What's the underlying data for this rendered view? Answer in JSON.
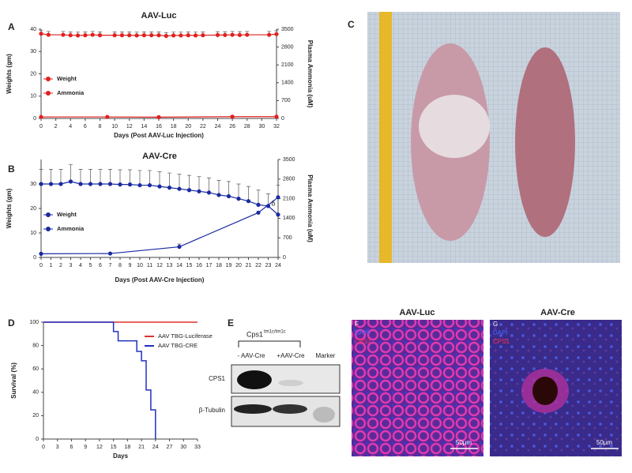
{
  "chart_data": [
    {
      "panel": "A",
      "type": "line",
      "title": "AAV-Luc",
      "xlabel": "Days (Post AAV-Luc Injection)",
      "ylabel": "Weights (gm)",
      "y2label": "Plasma Ammonia (uM)",
      "xlim": [
        0,
        32
      ],
      "xticks": [
        0,
        2,
        4,
        6,
        8,
        10,
        12,
        14,
        16,
        18,
        20,
        22,
        24,
        26,
        28,
        30,
        32
      ],
      "ylim": [
        0,
        40
      ],
      "yticks": [
        0,
        10,
        20,
        30,
        40
      ],
      "y2lim": [
        0,
        3500
      ],
      "y2ticks": [
        0,
        700,
        1400,
        2100,
        2800,
        3500
      ],
      "series": [
        {
          "name": "Weight",
          "color": "#e02020",
          "x": [
            0,
            1,
            3,
            4,
            5,
            6,
            7,
            8,
            10,
            11,
            12,
            13,
            14,
            15,
            16,
            17,
            18,
            19,
            20,
            21,
            22,
            24,
            25,
            26,
            27,
            28,
            31,
            32
          ],
          "values": [
            38,
            37.5,
            37.5,
            37.3,
            37.2,
            37.3,
            37.5,
            37.3,
            37.3,
            37.3,
            37.3,
            37.2,
            37.3,
            37.3,
            37.3,
            37,
            37.2,
            37.2,
            37.3,
            37.2,
            37.3,
            37.4,
            37.4,
            37.5,
            37.4,
            37.5,
            37.5,
            37.8
          ],
          "errors": [
            1.5,
            1.5,
            1.5,
            1.5,
            1.5,
            1.5,
            1.5,
            1.5,
            1.5,
            1.5,
            1.5,
            1.5,
            1.5,
            1.5,
            1.5,
            1.5,
            1.5,
            1.5,
            1.5,
            1.5,
            1.5,
            1.5,
            1.5,
            1.5,
            1.5,
            1.5,
            1.5,
            1.5
          ]
        },
        {
          "name": "Ammonia",
          "color": "#e02020",
          "axis": "y2",
          "x": [
            0,
            9,
            16,
            26,
            32
          ],
          "values": [
            60,
            60,
            50,
            70,
            70
          ]
        }
      ]
    },
    {
      "panel": "B",
      "type": "line",
      "title": "AAV-Cre",
      "xlabel": "Days (Post AAV-Cre Injection)",
      "ylabel": "Weights (gm)",
      "y2label": "Plasma Ammonia (uM)",
      "annotation": "δ",
      "xlim": [
        0,
        24
      ],
      "xticks": [
        0,
        1,
        2,
        3,
        4,
        5,
        6,
        7,
        8,
        9,
        10,
        11,
        12,
        13,
        14,
        15,
        16,
        17,
        18,
        19,
        20,
        21,
        22,
        23,
        24
      ],
      "ylim": [
        0,
        40
      ],
      "yticks": [
        0,
        10,
        20,
        30
      ],
      "y2lim": [
        0,
        3500
      ],
      "y2ticks": [
        0,
        700,
        1400,
        2100,
        2800,
        3500
      ],
      "series": [
        {
          "name": "Weight",
          "color": "#1a2aa0",
          "x": [
            0,
            1,
            2,
            3,
            4,
            5,
            6,
            7,
            8,
            9,
            10,
            11,
            12,
            13,
            14,
            15,
            16,
            17,
            18,
            19,
            20,
            21,
            22,
            23,
            24
          ],
          "values": [
            30,
            30,
            30,
            31,
            30,
            30,
            30,
            30,
            29.8,
            29.8,
            29.5,
            29.5,
            29,
            28.5,
            28,
            27.5,
            27,
            26.5,
            25.5,
            25,
            24,
            23,
            21.5,
            21,
            17.5
          ],
          "errors": [
            6,
            6,
            6,
            7,
            6,
            6,
            6,
            6,
            6,
            6,
            6,
            6,
            6,
            6,
            6,
            6,
            6,
            6,
            6,
            6,
            6,
            6,
            6,
            5,
            12
          ]
        },
        {
          "name": "Ammonia",
          "color": "#1a2aa0",
          "axis": "y2",
          "x": [
            0,
            7,
            14,
            22,
            24
          ],
          "values": [
            130,
            140,
            380,
            1600,
            2150
          ],
          "errors": [
            0,
            0,
            100,
            0,
            0
          ]
        }
      ]
    },
    {
      "panel": "D",
      "type": "step",
      "xlabel": "Days",
      "ylabel": "Survival (%)",
      "xlim": [
        0,
        33
      ],
      "xticks": [
        0,
        3,
        6,
        9,
        12,
        15,
        18,
        21,
        24,
        27,
        30,
        33
      ],
      "ylim": [
        0,
        100
      ],
      "yticks": [
        0,
        20,
        40,
        60,
        80,
        100
      ],
      "series": [
        {
          "name": "AAV TBG-Luciferase",
          "color": "#e03030",
          "x": [
            0,
            33
          ],
          "values": [
            100,
            100
          ]
        },
        {
          "name": "AAV TBG-CRE",
          "color": "#2030c0",
          "x": [
            0,
            15,
            16,
            20,
            21,
            22,
            23,
            24
          ],
          "values": [
            100,
            92,
            84,
            75,
            67,
            42,
            25,
            0
          ]
        }
      ]
    }
  ],
  "photo": {
    "panel": "C"
  },
  "western_blot": {
    "panel": "E",
    "genotype": "Cps1",
    "genotype_superscript": "tm1c/tm1c",
    "lanes": [
      "- AAV-Cre",
      "+AAV-Cre",
      "Marker"
    ],
    "rows": [
      "CPS1",
      "β-Tubulin"
    ]
  },
  "micrographs": [
    {
      "panel": "F",
      "title": "AAV-Luc",
      "stains": [
        "DAPI",
        "CPS1"
      ],
      "scale_bar": "50µm"
    },
    {
      "panel": "G",
      "title": "AAV-Cre",
      "stains": [
        "DAPI",
        "CPS1"
      ],
      "scale_bar": "50µm"
    }
  ]
}
